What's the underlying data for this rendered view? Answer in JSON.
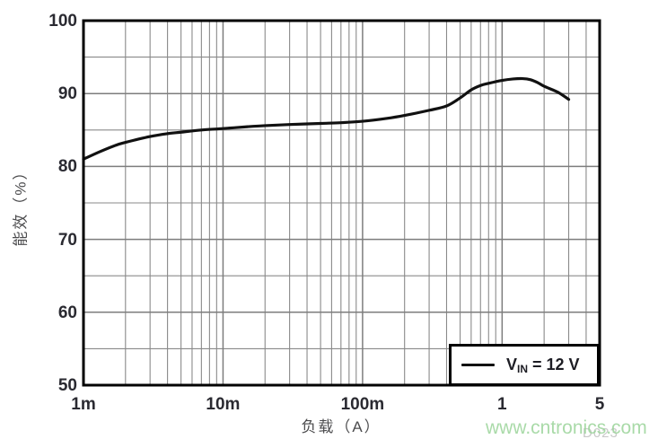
{
  "figure": {
    "background": "#ffffff",
    "watermark": "www.cntronics.com",
    "watermark_color": "#9bd49a",
    "figure_code": "D023"
  },
  "chart_data": {
    "type": "line",
    "title": "",
    "xlabel": "负载（A）",
    "ylabel": "能效（%）",
    "x_scale": "log",
    "xlim": [
      0.001,
      5
    ],
    "ylim": [
      50,
      100
    ],
    "grid": true,
    "grid_color": "#7d7d7d",
    "axis_color": "#000000",
    "x_ticks": [
      {
        "value": 0.001,
        "label": "1m"
      },
      {
        "value": 0.01,
        "label": "10m"
      },
      {
        "value": 0.1,
        "label": "100m"
      },
      {
        "value": 1,
        "label": "1"
      },
      {
        "value": 5,
        "label": "5"
      }
    ],
    "y_ticks": [
      {
        "value": 50,
        "label": "50"
      },
      {
        "value": 60,
        "label": "60"
      },
      {
        "value": 70,
        "label": "70"
      },
      {
        "value": 80,
        "label": "80"
      },
      {
        "value": 90,
        "label": "90"
      },
      {
        "value": 100,
        "label": "100"
      }
    ],
    "y_minor_ticks": [
      55,
      65,
      75,
      85,
      95
    ],
    "legend": {
      "position": "bottom-right",
      "entries": [
        {
          "label": "VIN = 12 V",
          "label_parts": {
            "base": "V",
            "sub": "IN",
            "rest": " = 12 V"
          },
          "color": "#111111"
        }
      ]
    },
    "series": [
      {
        "name": "VIN = 12 V",
        "color": "#111111",
        "points": [
          [
            0.001,
            81.0
          ],
          [
            0.0013,
            82.0
          ],
          [
            0.0017,
            82.9
          ],
          [
            0.002,
            83.3
          ],
          [
            0.003,
            84.1
          ],
          [
            0.004,
            84.5
          ],
          [
            0.005,
            84.7
          ],
          [
            0.007,
            85.0
          ],
          [
            0.01,
            85.2
          ],
          [
            0.015,
            85.45
          ],
          [
            0.02,
            85.6
          ],
          [
            0.03,
            85.75
          ],
          [
            0.05,
            85.9
          ],
          [
            0.07,
            86.0
          ],
          [
            0.1,
            86.2
          ],
          [
            0.15,
            86.6
          ],
          [
            0.2,
            87.0
          ],
          [
            0.3,
            87.7
          ],
          [
            0.4,
            88.3
          ],
          [
            0.5,
            89.4
          ],
          [
            0.6,
            90.5
          ],
          [
            0.7,
            91.1
          ],
          [
            0.8,
            91.4
          ],
          [
            1.0,
            91.8
          ],
          [
            1.2,
            92.0
          ],
          [
            1.4,
            92.05
          ],
          [
            1.6,
            91.9
          ],
          [
            1.8,
            91.5
          ],
          [
            2.0,
            91.0
          ],
          [
            2.5,
            90.2
          ],
          [
            3.0,
            89.2
          ]
        ]
      }
    ]
  }
}
